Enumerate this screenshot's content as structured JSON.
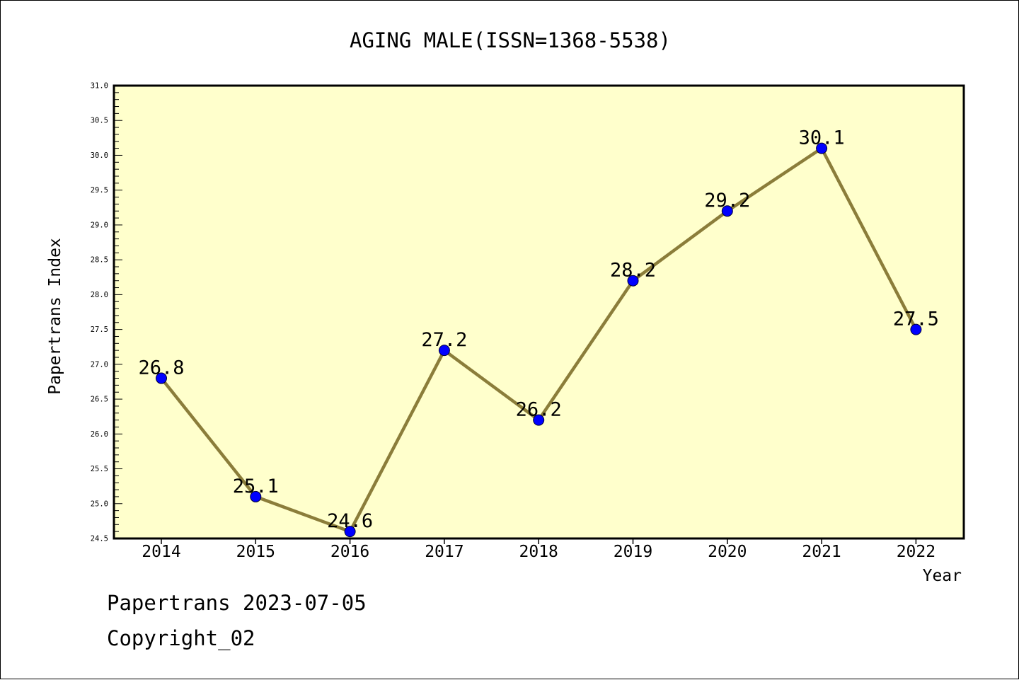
{
  "chart_data": {
    "type": "line",
    "title": "AGING MALE(ISSN=1368-5538)",
    "xlabel": "Year",
    "ylabel": "Papertrans Index",
    "categories": [
      "2014",
      "2015",
      "2016",
      "2017",
      "2018",
      "2019",
      "2020",
      "2021",
      "2022"
    ],
    "series": [
      {
        "values": [
          26.8,
          25.1,
          24.6,
          27.2,
          26.2,
          28.2,
          29.2,
          30.1,
          27.5
        ],
        "labels": [
          "26.8",
          "25.1",
          "24.6",
          "27.2",
          "26.2",
          "28.2",
          "29.2",
          "30.1",
          "27.5"
        ]
      }
    ],
    "ylim": [
      24.5,
      31.0
    ],
    "ytick_labels": [
      "24.5",
      "25.0",
      "25.5",
      "26.0",
      "26.5",
      "27.0",
      "27.5",
      "28.0",
      "28.5",
      "29.0",
      "29.5",
      "30.0",
      "30.5",
      "31.0"
    ],
    "grid": false,
    "legend": "none",
    "colors": {
      "plot_background": "#ffffcc",
      "line": "#8b7d3a",
      "marker": "#0000ff",
      "axes": "#000000"
    }
  },
  "footer": {
    "source_line": "Papertrans 2023-07-05",
    "copyright_line": "Copyright_02"
  }
}
